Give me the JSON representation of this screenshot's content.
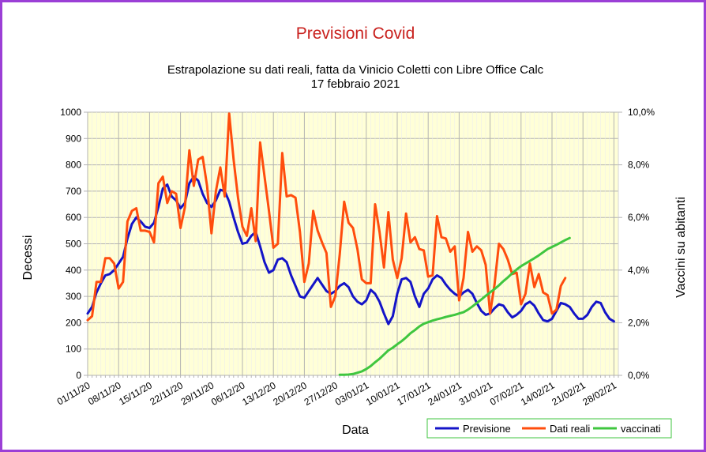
{
  "chart_data": {
    "type": "line",
    "title": "Previsioni Covid",
    "subtitle_line1": "Estrapolazione su dati reali, fatta da Vinicio Coletti con Libre Office Calc",
    "subtitle_line2": "17 febbraio 2021",
    "xlabel": "Data",
    "ylabel": "Decessi",
    "y2label": "Vaccini su abitanti",
    "ylim": [
      0,
      1000
    ],
    "y2lim": [
      0,
      10
    ],
    "yticks": [
      "0",
      "100",
      "200",
      "300",
      "400",
      "500",
      "600",
      "700",
      "800",
      "900",
      "1000"
    ],
    "y2ticks": [
      "0,0%",
      "2,0%",
      "4,0%",
      "6,0%",
      "8,0%",
      "10,0%"
    ],
    "xlim": [
      "2020-11-01",
      "2021-03-01"
    ],
    "xticks": [
      "01/11/20",
      "08/11/20",
      "15/11/20",
      "22/11/20",
      "29/11/20",
      "06/12/20",
      "13/12/20",
      "20/12/20",
      "27/12/20",
      "03/01/21",
      "10/01/21",
      "17/01/21",
      "24/01/21",
      "31/01/21",
      "07/02/21",
      "14/02/21",
      "21/02/21",
      "28/02/21"
    ],
    "grid": true,
    "legend_position": "bottom-right",
    "series": [
      {
        "name": "Previsione",
        "color": "#1414c8",
        "axis": "left",
        "start": "2020-11-01",
        "values": [
          235,
          260,
          315,
          350,
          380,
          385,
          400,
          425,
          450,
          520,
          575,
          600,
          585,
          565,
          560,
          580,
          640,
          710,
          725,
          680,
          665,
          635,
          655,
          730,
          755,
          740,
          690,
          655,
          640,
          665,
          705,
          700,
          660,
          600,
          545,
          500,
          505,
          530,
          545,
          490,
          430,
          390,
          400,
          440,
          445,
          430,
          380,
          340,
          300,
          295,
          320,
          345,
          370,
          345,
          320,
          310,
          320,
          340,
          350,
          335,
          300,
          280,
          270,
          285,
          325,
          310,
          280,
          235,
          195,
          225,
          310,
          365,
          370,
          355,
          300,
          260,
          310,
          330,
          365,
          380,
          370,
          345,
          325,
          310,
          300,
          315,
          325,
          310,
          275,
          245,
          230,
          235,
          255,
          270,
          265,
          240,
          220,
          230,
          245,
          270,
          280,
          265,
          235,
          210,
          205,
          215,
          245,
          275,
          270,
          260,
          235,
          215,
          215,
          230,
          260,
          280,
          275,
          240,
          215,
          205
        ]
      },
      {
        "name": "Dati reali",
        "color": "#ff4d0d",
        "axis": "left",
        "start": "2020-11-01",
        "values": [
          210,
          225,
          355,
          355,
          445,
          445,
          425,
          330,
          355,
          585,
          625,
          635,
          550,
          550,
          545,
          505,
          730,
          755,
          655,
          700,
          690,
          560,
          640,
          855,
          720,
          820,
          830,
          720,
          540,
          700,
          790,
          680,
          995,
          820,
          675,
          565,
          530,
          635,
          510,
          885,
          755,
          625,
          485,
          500,
          845,
          680,
          685,
          675,
          545,
          355,
          425,
          625,
          550,
          505,
          465,
          260,
          300,
          460,
          660,
          580,
          560,
          480,
          365,
          350,
          350,
          650,
          545,
          410,
          620,
          440,
          370,
          445,
          615,
          505,
          525,
          480,
          475,
          375,
          380,
          605,
          525,
          520,
          470,
          490,
          285,
          370,
          545,
          470,
          490,
          475,
          420,
          235,
          345,
          500,
          480,
          440,
          385,
          390,
          270,
          310,
          425,
          335,
          385,
          315,
          305,
          235,
          250,
          340,
          370
        ]
      },
      {
        "name": "vaccinati",
        "color": "#3fc63f",
        "axis": "right",
        "start": "2020-12-28",
        "values": [
          0.02,
          0.02,
          0.03,
          0.05,
          0.1,
          0.15,
          0.24,
          0.35,
          0.5,
          0.63,
          0.79,
          0.95,
          1.05,
          1.18,
          1.3,
          1.44,
          1.6,
          1.72,
          1.86,
          1.96,
          2.02,
          2.08,
          2.13,
          2.17,
          2.22,
          2.26,
          2.3,
          2.35,
          2.4,
          2.5,
          2.62,
          2.75,
          2.88,
          3.02,
          3.15,
          3.28,
          3.42,
          3.58,
          3.72,
          3.88,
          4.02,
          4.15,
          4.25,
          4.35,
          4.45,
          4.56,
          4.68,
          4.8,
          4.88,
          4.96,
          5.05,
          5.14,
          5.22
        ]
      }
    ]
  }
}
